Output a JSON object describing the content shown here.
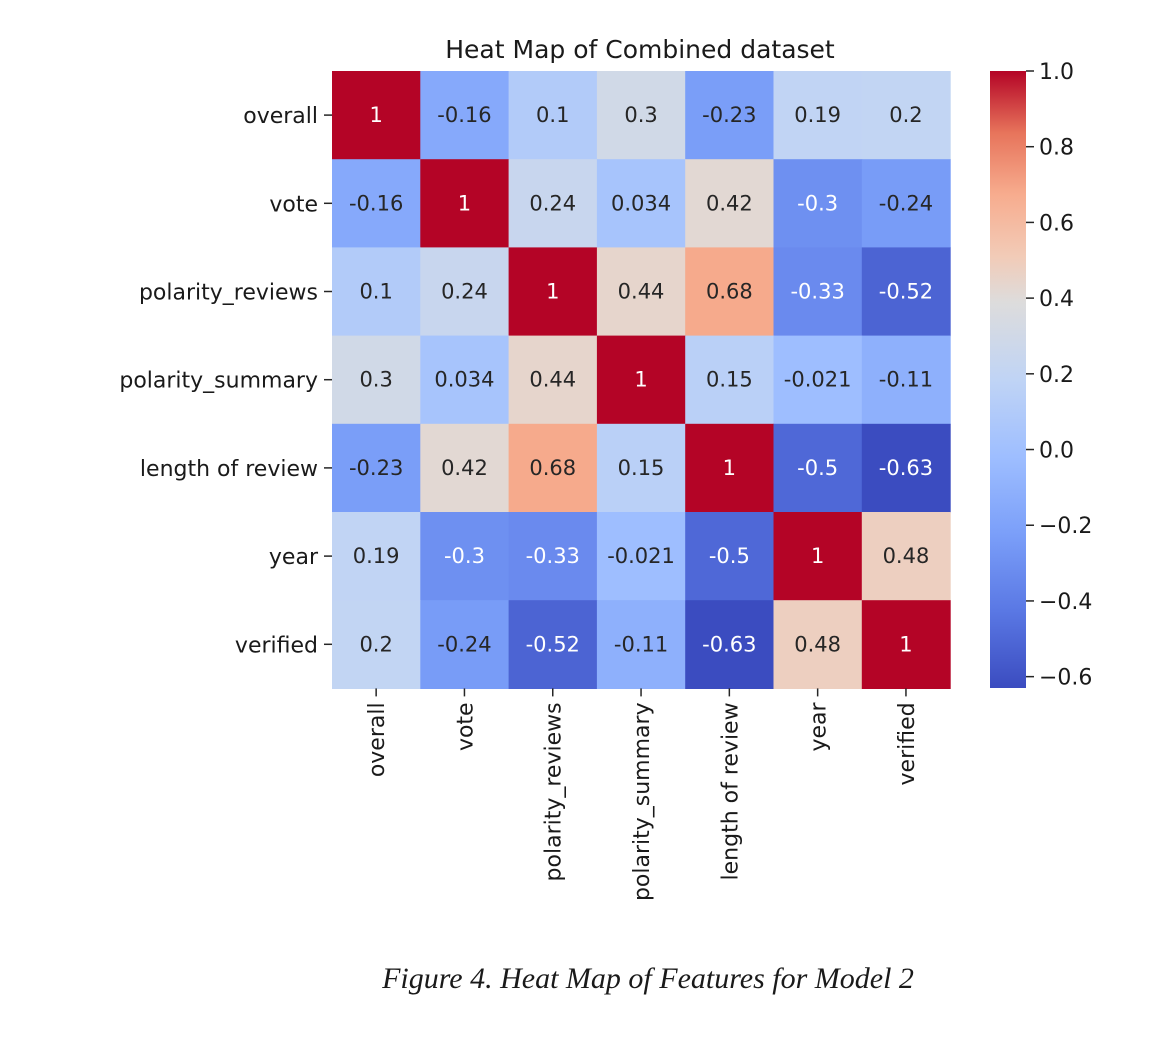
{
  "chart_data": {
    "type": "heatmap",
    "title": "Heat Map of Combined dataset",
    "rows": [
      "overall",
      "vote",
      "polarity_reviews",
      "polarity_summary",
      "length of review",
      "year",
      "verified"
    ],
    "columns": [
      "overall",
      "vote",
      "polarity_reviews",
      "polarity_summary",
      "length of review",
      "year",
      "verified"
    ],
    "values": [
      [
        1,
        -0.16,
        0.1,
        0.3,
        -0.23,
        0.19,
        0.2
      ],
      [
        -0.16,
        1,
        0.24,
        0.034,
        0.42,
        -0.3,
        -0.24
      ],
      [
        0.1,
        0.24,
        1,
        0.44,
        0.68,
        -0.33,
        -0.52
      ],
      [
        0.3,
        0.034,
        0.44,
        1,
        0.15,
        -0.021,
        -0.11
      ],
      [
        -0.23,
        0.42,
        0.68,
        0.15,
        1,
        -0.5,
        -0.63
      ],
      [
        0.19,
        -0.3,
        -0.33,
        -0.021,
        -0.5,
        1,
        0.48
      ],
      [
        0.2,
        -0.24,
        -0.52,
        -0.11,
        -0.63,
        0.48,
        1
      ]
    ],
    "cell_labels": [
      [
        "1",
        "-0.16",
        "0.1",
        "0.3",
        "-0.23",
        "0.19",
        "0.2"
      ],
      [
        "-0.16",
        "1",
        "0.24",
        "0.034",
        "0.42",
        "-0.3",
        "-0.24"
      ],
      [
        "0.1",
        "0.24",
        "1",
        "0.44",
        "0.68",
        "-0.33",
        "-0.52"
      ],
      [
        "0.3",
        "0.034",
        "0.44",
        "1",
        "0.15",
        "-0.021",
        "-0.11"
      ],
      [
        "-0.23",
        "0.42",
        "0.68",
        "0.15",
        "1",
        "-0.5",
        "-0.63"
      ],
      [
        "0.19",
        "-0.3",
        "-0.33",
        "-0.021",
        "-0.5",
        "1",
        "0.48"
      ],
      [
        "0.2",
        "-0.24",
        "-0.52",
        "-0.11",
        "-0.63",
        "0.48",
        "1"
      ]
    ],
    "colormap": "coolwarm",
    "colorbar": {
      "range": [
        -0.63,
        1.0
      ],
      "ticks": [
        1.0,
        0.8,
        0.6,
        0.4,
        0.2,
        0.0,
        -0.2,
        -0.4,
        -0.6
      ],
      "tick_labels": [
        "1.0",
        "0.8",
        "0.6",
        "0.4",
        "0.2",
        "0.0",
        "−0.2",
        "−0.4",
        "−0.6"
      ],
      "placement": "right"
    },
    "colors": {
      "min": "#3b4cc0",
      "mid": "#dddcdc",
      "max": "#b40426"
    }
  },
  "caption": "Figure 4. Heat Map of Features for Model 2"
}
